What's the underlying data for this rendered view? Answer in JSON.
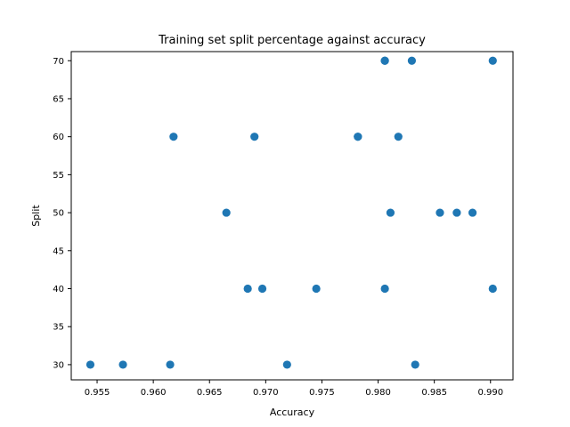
{
  "chart_data": {
    "type": "scatter",
    "title": "Training set split percentage against accuracy",
    "xlabel": "Accuracy",
    "ylabel": "Split",
    "xlim": [
      0.9527,
      0.992
    ],
    "ylim": [
      28,
      71.2
    ],
    "xticks": [
      {
        "value": 0.955,
        "label": "0.955"
      },
      {
        "value": 0.96,
        "label": "0.960"
      },
      {
        "value": 0.965,
        "label": "0.965"
      },
      {
        "value": 0.97,
        "label": "0.970"
      },
      {
        "value": 0.975,
        "label": "0.975"
      },
      {
        "value": 0.98,
        "label": "0.980"
      },
      {
        "value": 0.985,
        "label": "0.985"
      },
      {
        "value": 0.99,
        "label": "0.990"
      }
    ],
    "yticks": [
      {
        "value": 30,
        "label": "30"
      },
      {
        "value": 35,
        "label": "35"
      },
      {
        "value": 40,
        "label": "40"
      },
      {
        "value": 45,
        "label": "45"
      },
      {
        "value": 50,
        "label": "50"
      },
      {
        "value": 55,
        "label": "55"
      },
      {
        "value": 60,
        "label": "60"
      },
      {
        "value": 65,
        "label": "65"
      },
      {
        "value": 70,
        "label": "70"
      }
    ],
    "grid": false,
    "marker_color": "#1f77b4",
    "points": [
      {
        "x": 0.9544,
        "y": 30
      },
      {
        "x": 0.9573,
        "y": 30
      },
      {
        "x": 0.9615,
        "y": 30
      },
      {
        "x": 0.9719,
        "y": 30
      },
      {
        "x": 0.9833,
        "y": 30
      },
      {
        "x": 0.9684,
        "y": 40
      },
      {
        "x": 0.9697,
        "y": 40
      },
      {
        "x": 0.9745,
        "y": 40
      },
      {
        "x": 0.9806,
        "y": 40
      },
      {
        "x": 0.9902,
        "y": 40
      },
      {
        "x": 0.9665,
        "y": 50
      },
      {
        "x": 0.9811,
        "y": 50
      },
      {
        "x": 0.9855,
        "y": 50
      },
      {
        "x": 0.987,
        "y": 50
      },
      {
        "x": 0.9884,
        "y": 50
      },
      {
        "x": 0.9618,
        "y": 60
      },
      {
        "x": 0.969,
        "y": 60
      },
      {
        "x": 0.9782,
        "y": 60
      },
      {
        "x": 0.9782,
        "y": 60
      },
      {
        "x": 0.9818,
        "y": 60
      },
      {
        "x": 0.9806,
        "y": 70
      },
      {
        "x": 0.9806,
        "y": 70
      },
      {
        "x": 0.983,
        "y": 70
      },
      {
        "x": 0.9902,
        "y": 70
      }
    ]
  }
}
